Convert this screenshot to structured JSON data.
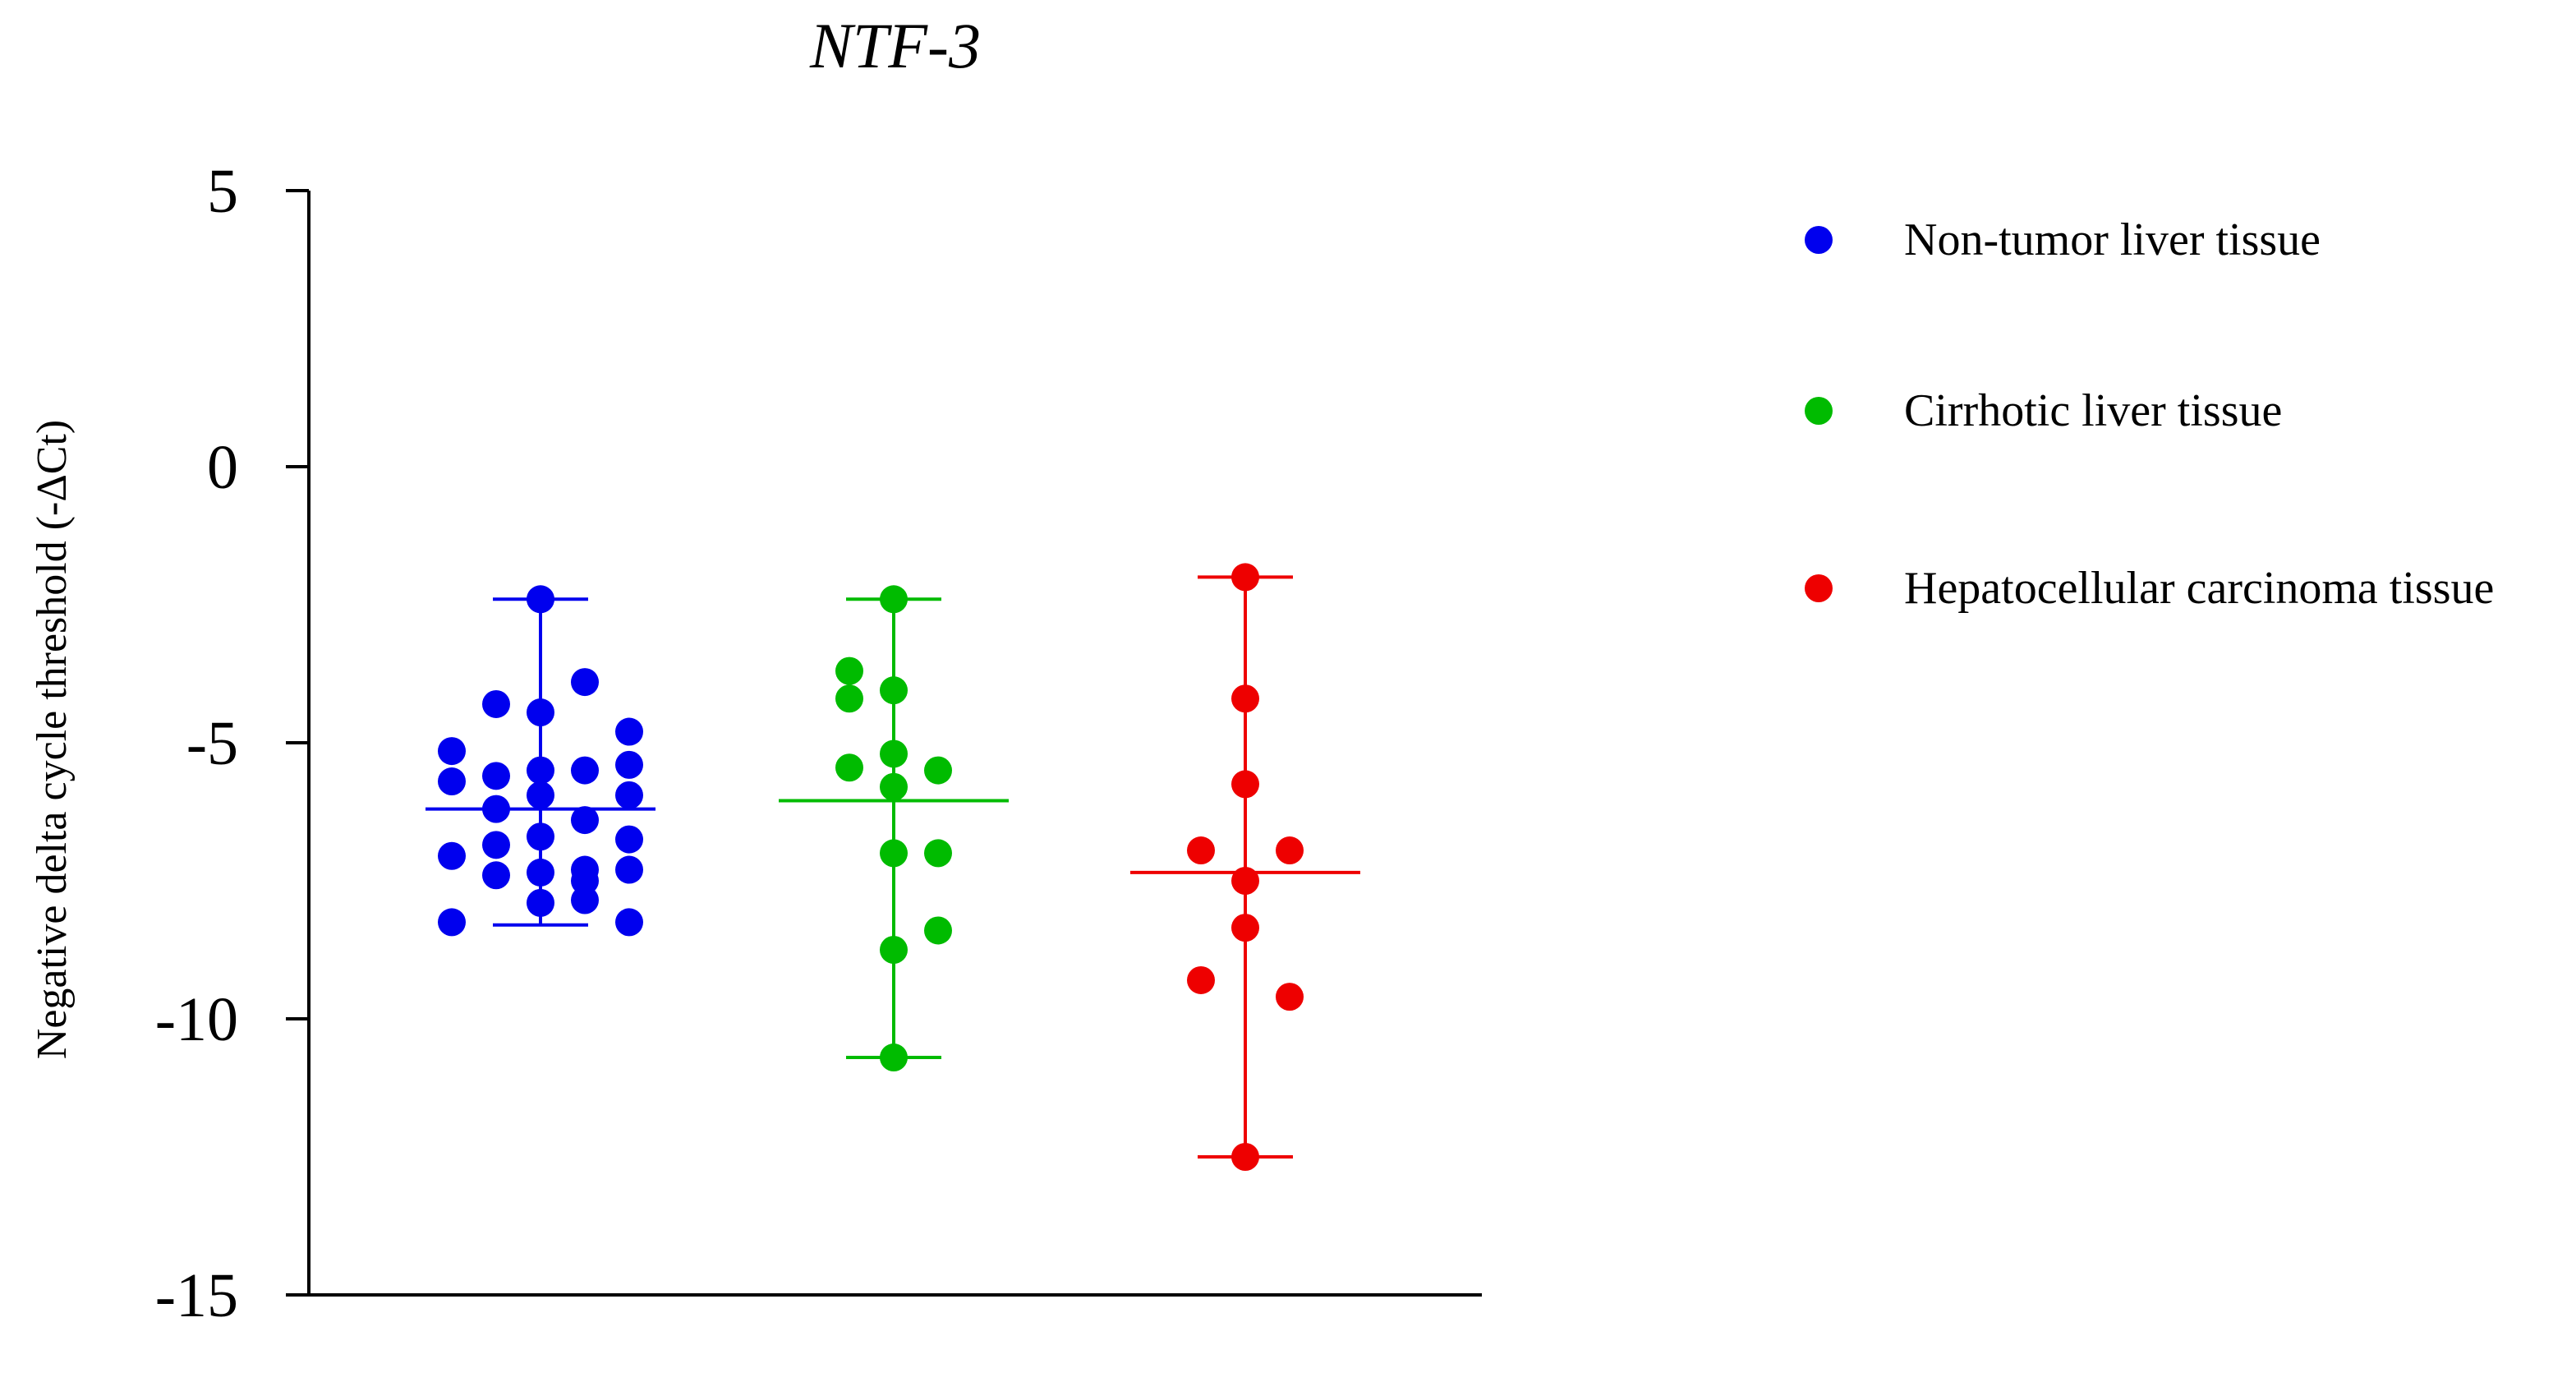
{
  "chart_data": {
    "type": "scatter",
    "title": "NTF-3",
    "xlabel": "",
    "ylabel": "Negative delta cycle threshold (-ΔCt)",
    "ylim": [
      -15,
      5
    ],
    "yticks": [
      "5",
      "0",
      "-5",
      "-10",
      "-15"
    ],
    "grid": false,
    "legend_position": "right",
    "series": [
      {
        "name": "Non-tumor liver tissue",
        "color": "#0000ee",
        "group": 1,
        "mean": -6.2,
        "min": -8.3,
        "max": -2.4,
        "points": [
          {
            "o": 0,
            "y": -2.4
          },
          {
            "o": -1,
            "y": -4.3
          },
          {
            "o": 0,
            "y": -4.45
          },
          {
            "o": 1,
            "y": -3.9
          },
          {
            "o": -2,
            "y": -5.15
          },
          {
            "o": 2,
            "y": -4.8
          },
          {
            "o": -1,
            "y": -5.6
          },
          {
            "o": 0,
            "y": -5.5
          },
          {
            "o": 1,
            "y": -5.5
          },
          {
            "o": 2,
            "y": -5.4
          },
          {
            "o": -2,
            "y": -5.7
          },
          {
            "o": 0,
            "y": -5.95
          },
          {
            "o": 2,
            "y": -5.95
          },
          {
            "o": -1,
            "y": -6.2
          },
          {
            "o": 1,
            "y": -6.4
          },
          {
            "o": -1,
            "y": -6.85
          },
          {
            "o": 0,
            "y": -6.7
          },
          {
            "o": 2,
            "y": -6.75
          },
          {
            "o": -2,
            "y": -7.05
          },
          {
            "o": 1,
            "y": -7.3
          },
          {
            "o": 2,
            "y": -7.3
          },
          {
            "o": -1,
            "y": -7.4
          },
          {
            "o": 0,
            "y": -7.35
          },
          {
            "o": 1,
            "y": -7.5
          },
          {
            "o": 0,
            "y": -7.9
          },
          {
            "o": 1,
            "y": -7.85
          },
          {
            "o": -2,
            "y": -8.25
          },
          {
            "o": 2,
            "y": -8.25
          }
        ]
      },
      {
        "name": "Cirrhotic liver tissue",
        "color": "#00bb00",
        "group": 2,
        "mean": -6.05,
        "min": -10.7,
        "max": -2.4,
        "points": [
          {
            "o": 0,
            "y": -2.4
          },
          {
            "o": -1,
            "y": -3.7
          },
          {
            "o": 0,
            "y": -4.05
          },
          {
            "o": -1,
            "y": -4.2
          },
          {
            "o": 0,
            "y": -5.2
          },
          {
            "o": -1,
            "y": -5.45
          },
          {
            "o": 1,
            "y": -5.5
          },
          {
            "o": 0,
            "y": -5.8
          },
          {
            "o": 0,
            "y": -7.0
          },
          {
            "o": 1,
            "y": -7.0
          },
          {
            "o": 1,
            "y": -8.4
          },
          {
            "o": 0,
            "y": -8.75
          },
          {
            "o": 0,
            "y": -10.7
          }
        ]
      },
      {
        "name": "Hepatocellular carcinoma tissue",
        "color": "#ee0000",
        "group": 3,
        "mean": -7.35,
        "min": -12.5,
        "max": -2.0,
        "points": [
          {
            "o": 0,
            "y": -2.0
          },
          {
            "o": 0,
            "y": -4.2
          },
          {
            "o": 0,
            "y": -5.75
          },
          {
            "o": -1,
            "y": -6.95
          },
          {
            "o": 1,
            "y": -6.95
          },
          {
            "o": 0,
            "y": -7.5
          },
          {
            "o": 0,
            "y": -8.35
          },
          {
            "o": -1,
            "y": -9.3
          },
          {
            "o": 1,
            "y": -9.6
          },
          {
            "o": 0,
            "y": -12.5
          }
        ]
      }
    ]
  }
}
